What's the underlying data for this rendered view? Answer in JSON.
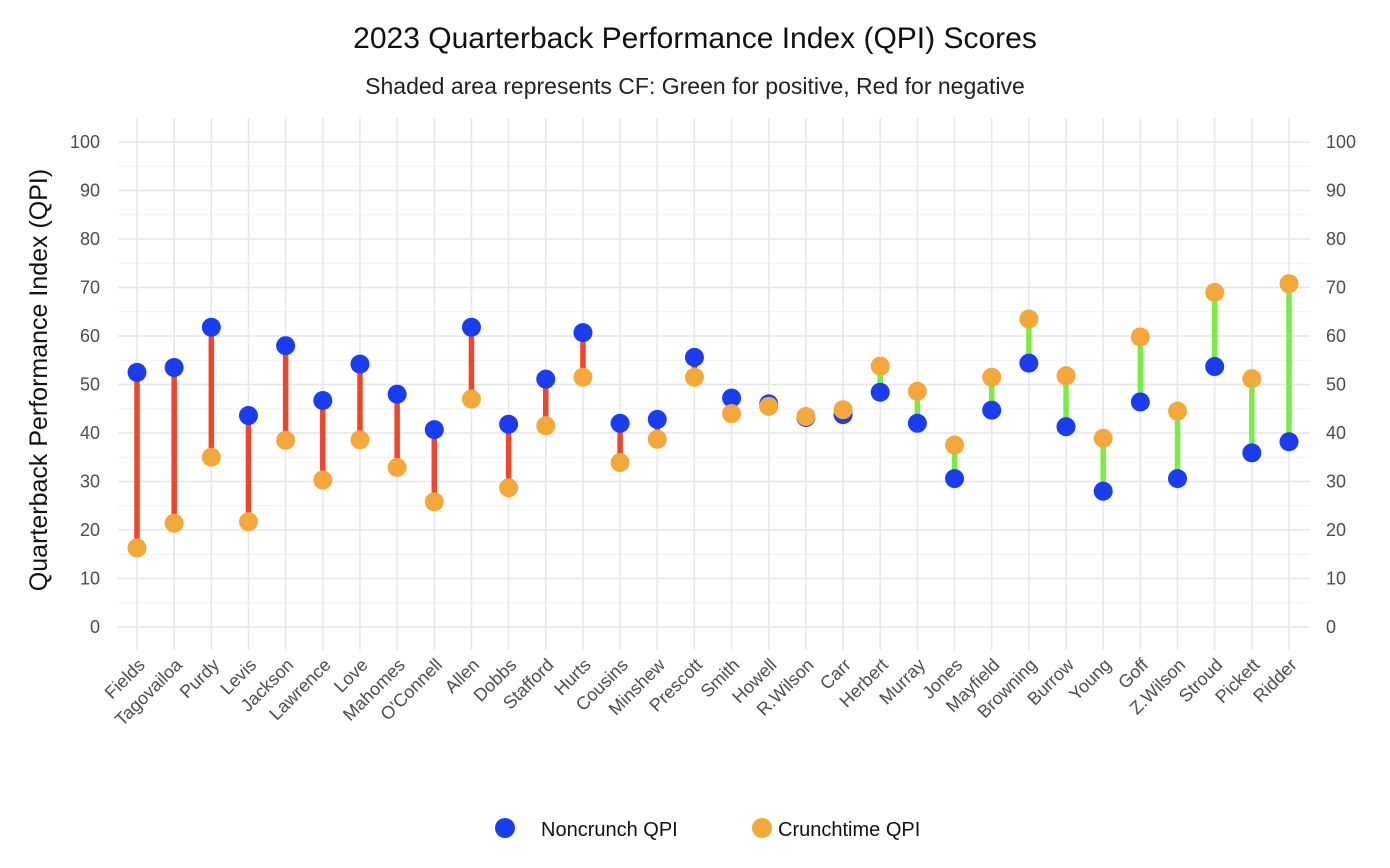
{
  "chart_data": {
    "type": "scatter",
    "title": "2023 Quarterback Performance Index (QPI) Scores",
    "subtitle": "Shaded area represents CF: Green for positive, Red for negative",
    "ylabel": "Quarterback Performance Index (QPI)",
    "ylim": [
      0,
      100
    ],
    "yticks": [
      0,
      10,
      20,
      30,
      40,
      50,
      60,
      70,
      80,
      90,
      100
    ],
    "grid": true,
    "legend_position": "bottom",
    "categories": [
      "Fields",
      "Tagovailoa",
      "Purdy",
      "Levis",
      "Jackson",
      "Lawrence",
      "Love",
      "Mahomes",
      "O'Connell",
      "Allen",
      "Dobbs",
      "Stafford",
      "Hurts",
      "Cousins",
      "Minshew",
      "Prescott",
      "Smith",
      "Howell",
      "R.Wilson",
      "Carr",
      "Herbert",
      "Murray",
      "Jones",
      "Mayfield",
      "Browning",
      "Burrow",
      "Young",
      "Goff",
      "Z.Wilson",
      "Stroud",
      "Pickett",
      "Ridder"
    ],
    "series": [
      {
        "name": "Noncrunch QPI",
        "color": "#1a3cf2",
        "values": [
          52.5,
          53.5,
          61.8,
          43.6,
          58.0,
          46.7,
          54.2,
          48.0,
          40.7,
          61.8,
          41.8,
          51.1,
          60.7,
          42.0,
          42.8,
          55.6,
          47.2,
          46.0,
          43.2,
          43.8,
          48.4,
          42.0,
          30.6,
          44.7,
          54.4,
          41.3,
          28.0,
          46.4,
          30.6,
          53.7,
          35.9,
          38.2
        ]
      },
      {
        "name": "Crunchtime QPI",
        "color": "#f5a83a",
        "values": [
          16.3,
          21.4,
          35.0,
          21.7,
          38.5,
          30.3,
          38.6,
          32.9,
          25.8,
          47.0,
          28.7,
          41.5,
          51.5,
          33.9,
          38.7,
          51.5,
          44.0,
          45.5,
          43.4,
          44.8,
          53.8,
          48.6,
          37.5,
          51.5,
          63.5,
          51.8,
          38.9,
          59.8,
          44.5,
          69.0,
          51.2,
          70.8
        ]
      }
    ],
    "segment_colors": {
      "positive": "#77ee44",
      "negative": "#ef4528"
    }
  }
}
